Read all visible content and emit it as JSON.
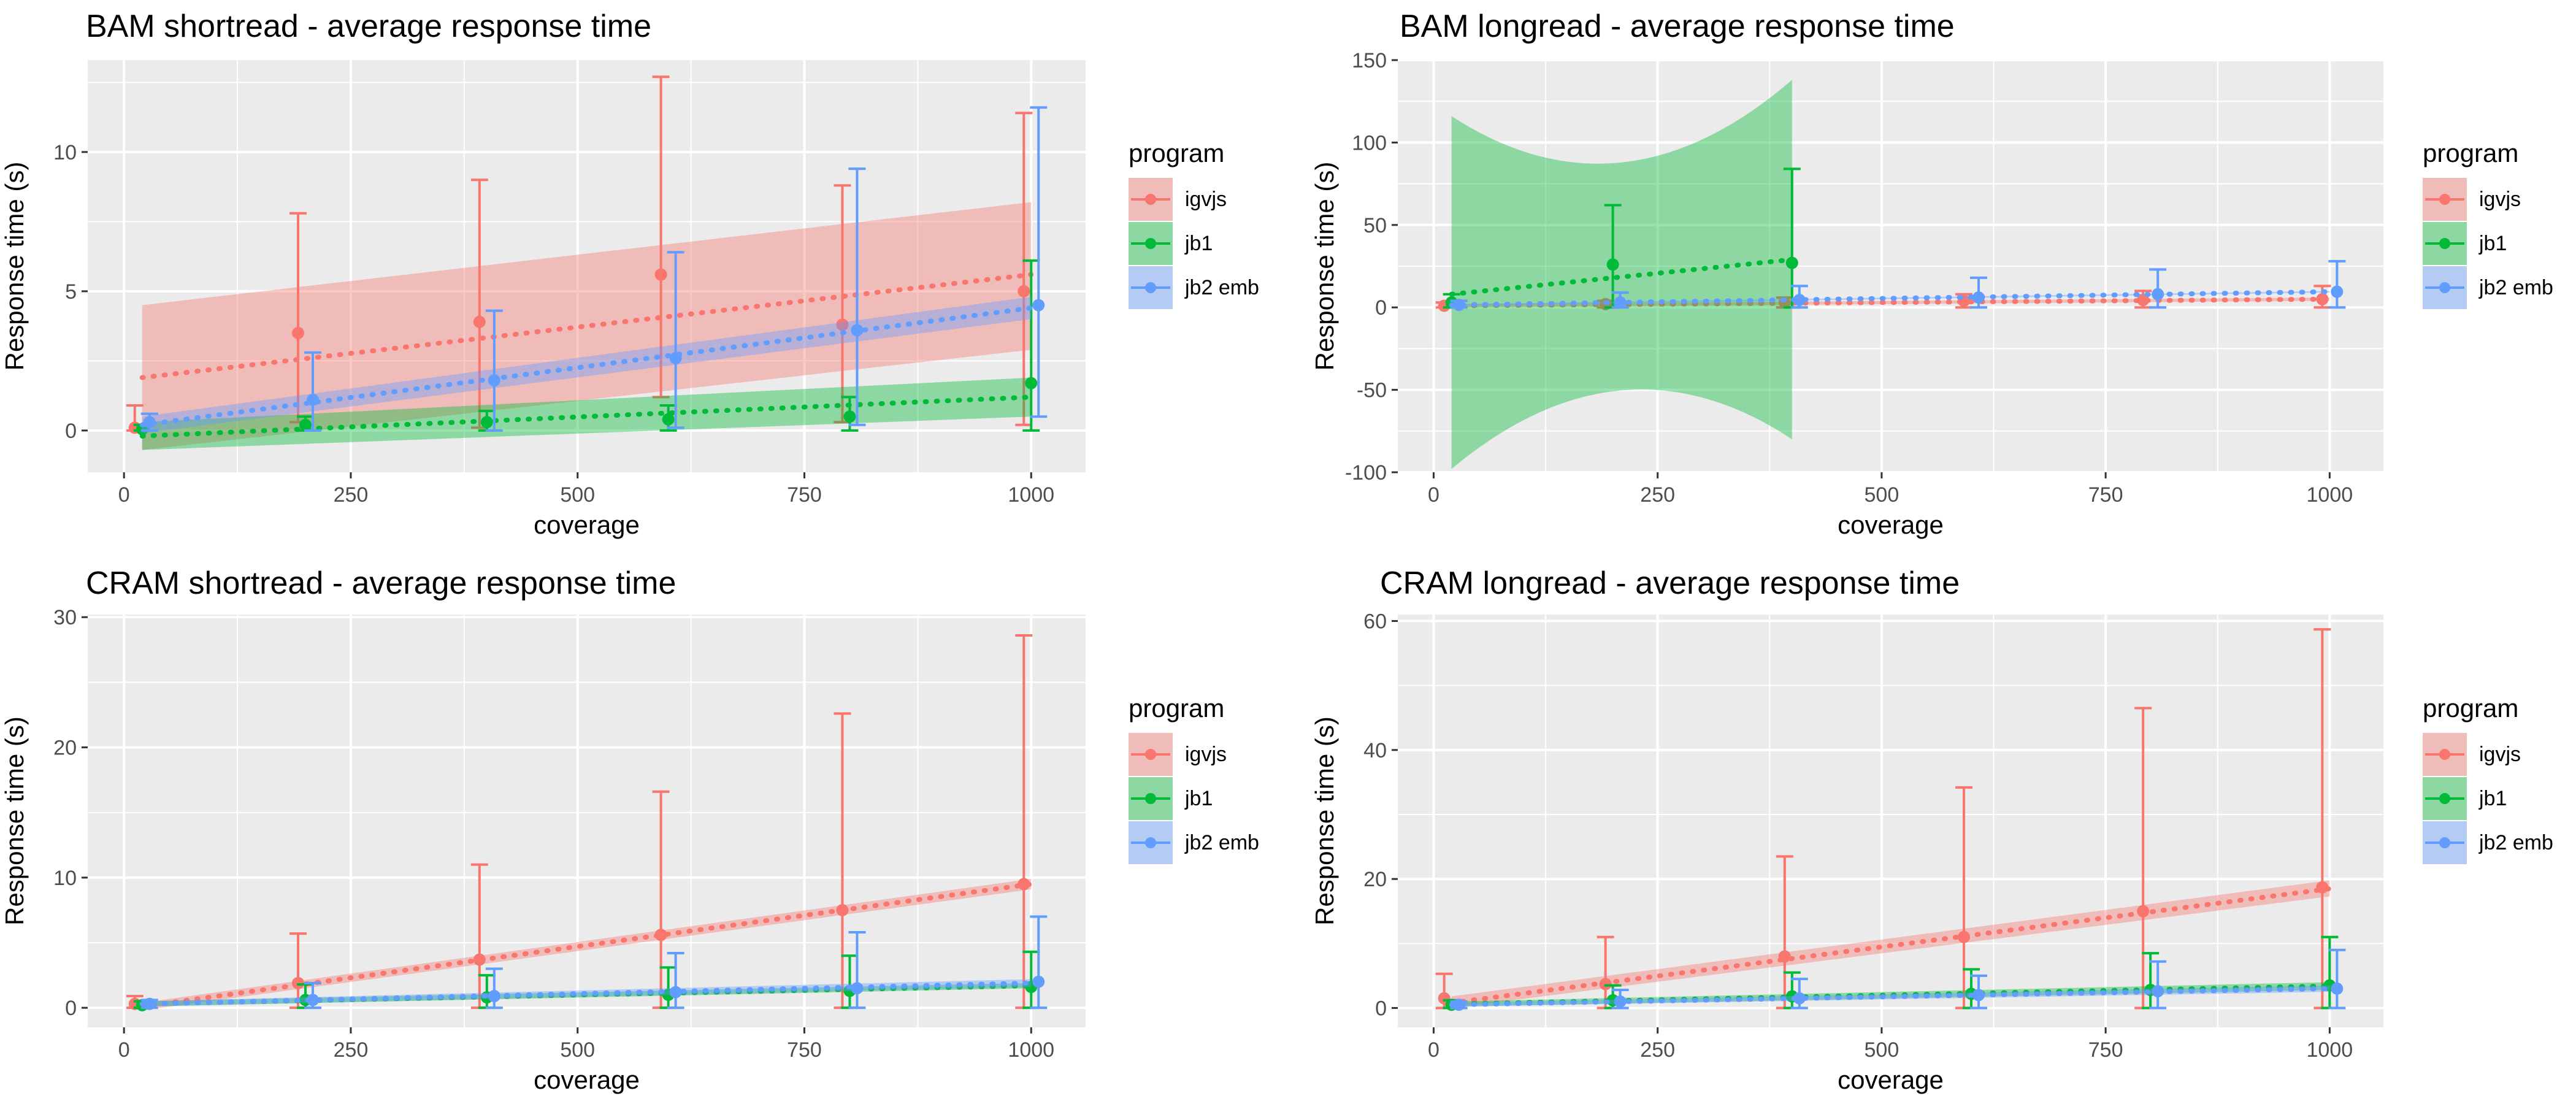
{
  "colors": {
    "igvjs": "#F8766D",
    "jb1": "#00BA38",
    "jb2 emb": "#619CFF",
    "panel_bg": "#EBEBEB",
    "grid": "#FFFFFF",
    "text": "#000000",
    "axis_text": "#4D4D4D"
  },
  "chart_data": [
    {
      "type": "line",
      "title": "BAM shortread - average response time",
      "xlabel": "coverage",
      "ylabel": "Response time (s)",
      "xlim": [
        -40,
        1060
      ],
      "ylim": [
        -1.5,
        13.3
      ],
      "xticks": [
        0,
        250,
        500,
        750,
        1000
      ],
      "yticks": [
        0,
        5,
        10
      ],
      "legend_position": "right",
      "legend_title": "program",
      "series": [
        {
          "name": "igvjs",
          "key": "igvjs",
          "x": [
            20,
            200,
            400,
            600,
            800,
            1000
          ],
          "mean": [
            0.1,
            3.5,
            3.9,
            5.6,
            3.8,
            5.0
          ],
          "err_low": [
            0.0,
            0.3,
            0.1,
            1.2,
            0.3,
            0.2
          ],
          "err_high": [
            0.9,
            7.8,
            9.0,
            12.7,
            8.8,
            11.4
          ],
          "fit": [
            1.9,
            5.6
          ],
          "band_low": [
            -0.7,
            2.9
          ],
          "band_high": [
            4.5,
            8.2
          ]
        },
        {
          "name": "jb1",
          "key": "jb1",
          "x": [
            20,
            200,
            400,
            600,
            800,
            1000
          ],
          "mean": [
            0.05,
            0.2,
            0.3,
            0.4,
            0.5,
            1.7
          ],
          "err_low": [
            0.0,
            0.0,
            0.0,
            0.0,
            0.0,
            0.0
          ],
          "err_high": [
            0.2,
            0.5,
            0.7,
            0.9,
            1.2,
            6.1
          ],
          "fit": [
            -0.2,
            1.2
          ],
          "band_low": [
            -0.7,
            0.5
          ],
          "band_high": [
            0.3,
            1.9
          ]
        },
        {
          "name": "jb2 emb",
          "key": "jb2 emb",
          "x": [
            20,
            200,
            400,
            600,
            800,
            1000
          ],
          "mean": [
            0.3,
            1.1,
            1.8,
            2.6,
            3.6,
            4.5
          ],
          "err_low": [
            0.0,
            0.0,
            0.0,
            0.1,
            0.2,
            0.5
          ],
          "err_high": [
            0.6,
            2.8,
            4.3,
            6.4,
            9.4,
            11.6
          ],
          "fit": [
            0.2,
            4.4
          ],
          "band_low": [
            -0.1,
            4.0
          ],
          "band_high": [
            0.5,
            4.8
          ]
        }
      ]
    },
    {
      "type": "line",
      "title": "BAM longread - average response time",
      "xlabel": "coverage",
      "ylabel": "Response time (s)",
      "xlim": [
        -40,
        1060
      ],
      "ylim": [
        -100,
        150
      ],
      "xticks": [
        0,
        250,
        500,
        750,
        1000
      ],
      "yticks": [
        -100,
        -50,
        0,
        50,
        100,
        150
      ],
      "legend_position": "right",
      "legend_title": "program",
      "series": [
        {
          "name": "igvjs",
          "key": "igvjs",
          "x": [
            20,
            200,
            400,
            600,
            800,
            1000
          ],
          "mean": [
            1.0,
            2.0,
            3.0,
            4.0,
            4.5,
            5.0
          ],
          "err_low": [
            0.0,
            0.0,
            0.0,
            0.0,
            0.0,
            0.0
          ],
          "err_high": [
            3.0,
            4.0,
            6.0,
            8.0,
            10.0,
            13.0
          ],
          "fit": [
            1.0,
            5.0
          ],
          "band_low": [
            0.0,
            4.0
          ],
          "band_high": [
            2.0,
            6.0
          ]
        },
        {
          "name": "jb1",
          "key": "jb1",
          "x": [
            20,
            200,
            400
          ],
          "mean": [
            3.0,
            26.0,
            27.0
          ],
          "err_low": [
            0.0,
            0.0,
            0.0
          ],
          "err_high": [
            8.0,
            62.0,
            84.0
          ],
          "fit": [
            8.0,
            29.0
          ],
          "band_low": [
            -98.0,
            -80.0
          ],
          "band_high": [
            116.0,
            138.0
          ]
        },
        {
          "name": "jb2 emb",
          "key": "jb2 emb",
          "x": [
            20,
            200,
            400,
            600,
            800,
            1000
          ],
          "mean": [
            1.5,
            3.0,
            4.5,
            6.0,
            8.0,
            9.5
          ],
          "err_low": [
            0.0,
            0.0,
            0.0,
            0.0,
            0.0,
            0.0
          ],
          "err_high": [
            4.0,
            9.0,
            13.0,
            18.0,
            23.0,
            28.0
          ],
          "fit": [
            1.5,
            9.5
          ],
          "band_low": [
            1.0,
            9.0
          ],
          "band_high": [
            2.0,
            10.0
          ]
        }
      ]
    },
    {
      "type": "line",
      "title": "CRAM shortread - average response time",
      "xlabel": "coverage",
      "ylabel": "Response time (s)",
      "xlim": [
        -40,
        1060
      ],
      "ylim": [
        -1.5,
        30.2
      ],
      "xticks": [
        0,
        250,
        500,
        750,
        1000
      ],
      "yticks": [
        0,
        10,
        20,
        30
      ],
      "legend_position": "right",
      "legend_title": "program",
      "series": [
        {
          "name": "igvjs",
          "key": "igvjs",
          "x": [
            20,
            200,
            400,
            600,
            800,
            1000
          ],
          "mean": [
            0.3,
            1.9,
            3.7,
            5.6,
            7.5,
            9.5
          ],
          "err_low": [
            0.0,
            0.0,
            0.0,
            0.0,
            0.0,
            0.0
          ],
          "err_high": [
            0.9,
            5.7,
            11.0,
            16.6,
            22.6,
            28.6
          ],
          "fit": [
            0.1,
            9.5
          ],
          "band_low": [
            -0.2,
            9.1
          ],
          "band_high": [
            0.4,
            9.9
          ]
        },
        {
          "name": "jb1",
          "key": "jb1",
          "x": [
            20,
            200,
            400,
            600,
            800,
            1000
          ],
          "mean": [
            0.2,
            0.6,
            0.8,
            1.0,
            1.3,
            1.6
          ],
          "err_low": [
            0.0,
            0.0,
            0.0,
            0.0,
            0.0,
            0.0
          ],
          "err_high": [
            0.5,
            1.8,
            2.5,
            3.1,
            4.0,
            4.3
          ],
          "fit": [
            0.3,
            1.7
          ],
          "band_low": [
            0.1,
            1.5
          ],
          "band_high": [
            0.5,
            1.9
          ]
        },
        {
          "name": "jb2 emb",
          "key": "jb2 emb",
          "x": [
            20,
            200,
            400,
            600,
            800,
            1000
          ],
          "mean": [
            0.3,
            0.6,
            0.9,
            1.2,
            1.5,
            2.0
          ],
          "err_low": [
            0.0,
            0.0,
            0.0,
            0.0,
            0.0,
            0.0
          ],
          "err_high": [
            0.6,
            1.9,
            3.0,
            4.2,
            5.8,
            7.0
          ],
          "fit": [
            0.3,
            1.9
          ],
          "band_low": [
            0.1,
            1.6
          ],
          "band_high": [
            0.5,
            2.2
          ]
        }
      ]
    },
    {
      "type": "line",
      "title": "CRAM longread - average response time",
      "xlabel": "coverage",
      "ylabel": "Response time (s)",
      "xlim": [
        -40,
        1060
      ],
      "ylim": [
        -3,
        61
      ],
      "xticks": [
        0,
        250,
        500,
        750,
        1000
      ],
      "yticks": [
        0,
        20,
        40,
        60
      ],
      "legend_position": "right",
      "legend_title": "program",
      "series": [
        {
          "name": "igvjs",
          "key": "igvjs",
          "x": [
            20,
            200,
            400,
            600,
            800,
            1000
          ],
          "mean": [
            1.5,
            3.7,
            8.0,
            11.0,
            15.0,
            18.7
          ],
          "err_low": [
            0.0,
            0.0,
            0.0,
            0.0,
            0.0,
            0.0
          ],
          "err_high": [
            5.3,
            11.0,
            23.5,
            34.2,
            46.5,
            58.7
          ],
          "fit": [
            0.8,
            18.5
          ],
          "band_low": [
            0.0,
            17.3
          ],
          "band_high": [
            1.8,
            19.8
          ]
        },
        {
          "name": "jb1",
          "key": "jb1",
          "x": [
            20,
            200,
            400,
            600,
            800,
            1000
          ],
          "mean": [
            0.5,
            1.2,
            1.8,
            2.2,
            2.8,
            3.5
          ],
          "err_low": [
            0.0,
            0.0,
            0.0,
            0.0,
            0.0,
            0.0
          ],
          "err_high": [
            1.2,
            3.5,
            5.5,
            6.0,
            8.5,
            11.0
          ],
          "fit": [
            0.6,
            3.4
          ],
          "band_low": [
            0.2,
            2.8
          ],
          "band_high": [
            1.0,
            4.0
          ]
        },
        {
          "name": "jb2 emb",
          "key": "jb2 emb",
          "x": [
            20,
            200,
            400,
            600,
            800,
            1000
          ],
          "mean": [
            0.5,
            1.0,
            1.5,
            2.0,
            2.6,
            3.0
          ],
          "err_low": [
            0.0,
            0.0,
            0.0,
            0.0,
            0.0,
            0.0
          ],
          "err_high": [
            1.0,
            2.8,
            4.5,
            5.0,
            7.2,
            9.0
          ],
          "fit": [
            0.5,
            3.0
          ],
          "band_low": [
            0.2,
            2.5
          ],
          "band_high": [
            0.8,
            3.5
          ]
        }
      ]
    }
  ]
}
